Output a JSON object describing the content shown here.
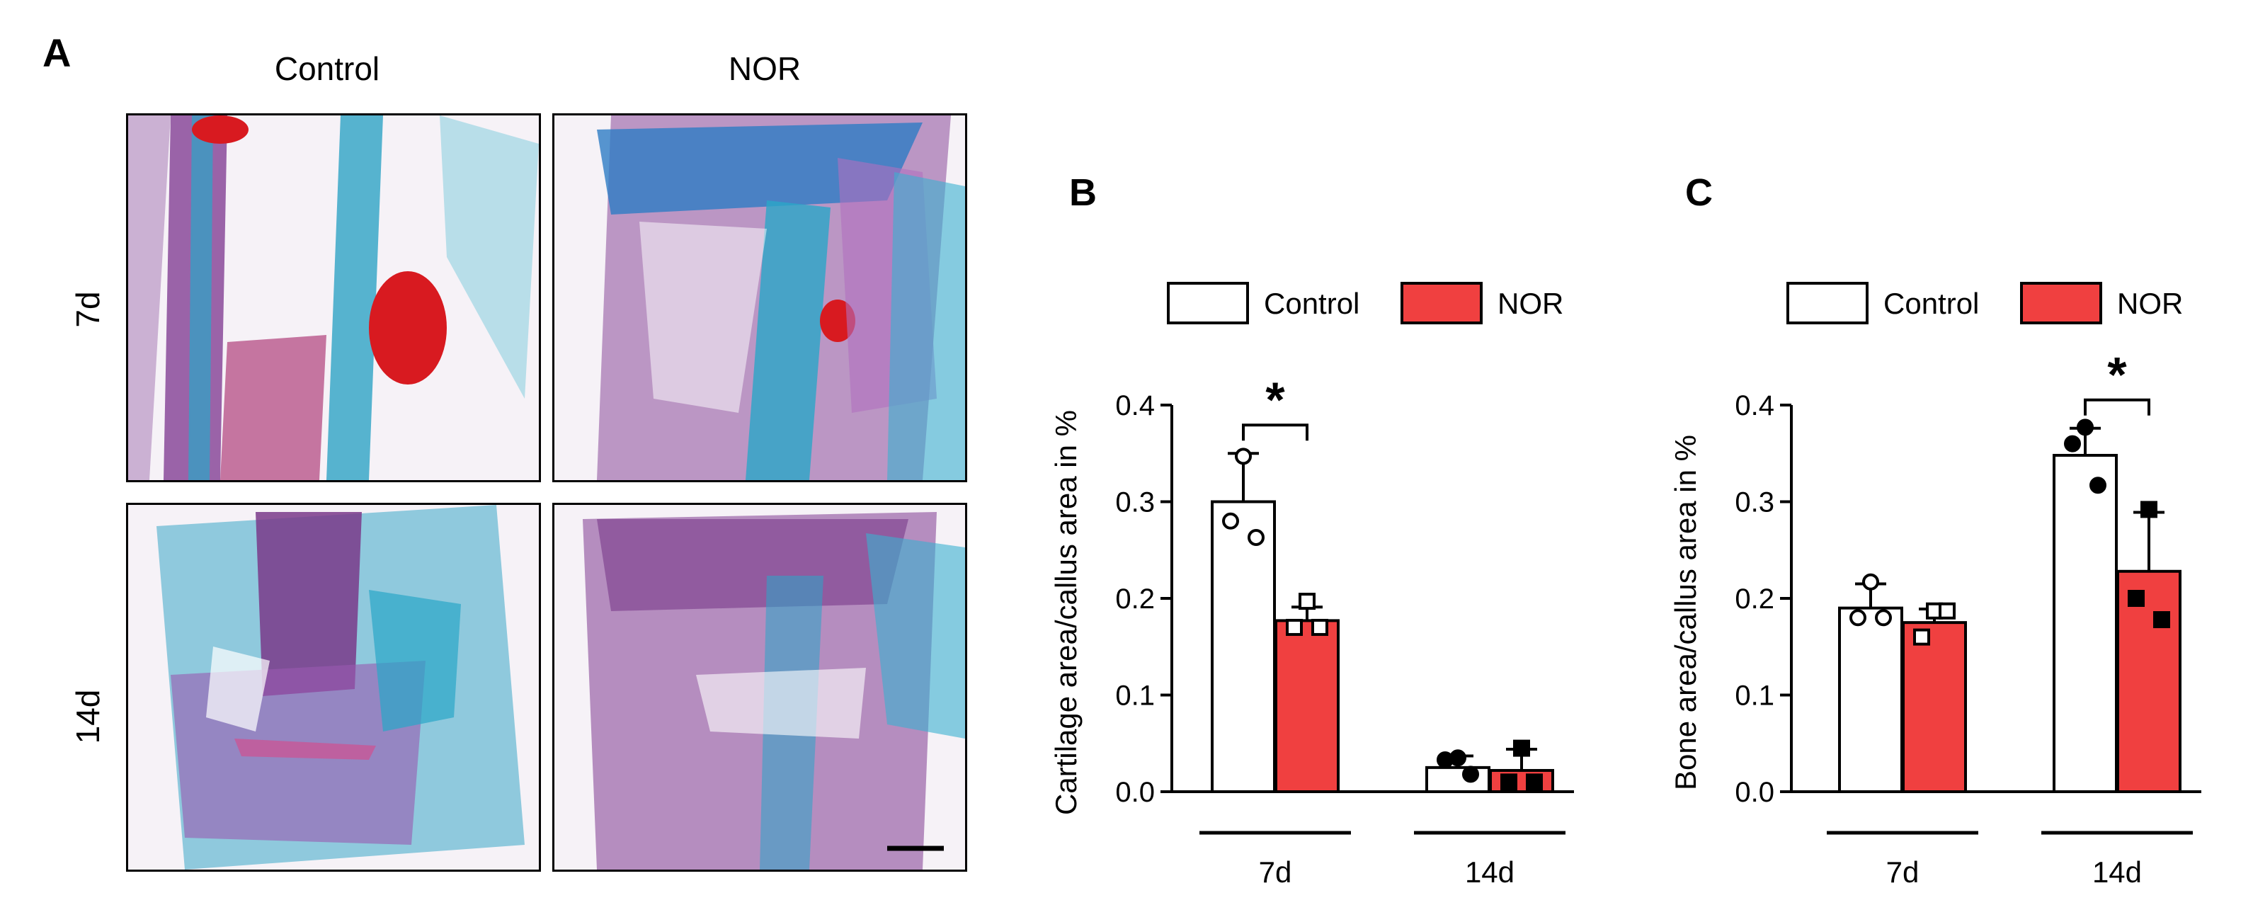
{
  "panel_a": {
    "letter": "A",
    "columns": [
      "Control",
      "NOR"
    ],
    "rows": [
      "7d",
      "14d"
    ],
    "images": [
      {
        "name": "micrograph-control-7d",
        "description": "histology"
      },
      {
        "name": "micrograph-nor-7d",
        "description": "histology"
      },
      {
        "name": "micrograph-control-14d",
        "description": "histology"
      },
      {
        "name": "micrograph-nor-14d",
        "description": "histology"
      }
    ]
  },
  "colors": {
    "control_fill": "#ffffff",
    "nor_fill": "#f04040",
    "axis": "#000000"
  },
  "chart_data": [
    {
      "panel": "B",
      "type": "bar",
      "ylabel": "Cartilage area/callus area in %",
      "ylim": [
        0,
        0.4
      ],
      "yticks": [
        "0.0",
        "0.1",
        "0.2",
        "0.3",
        "0.4"
      ],
      "legend": [
        "Control",
        "NOR"
      ],
      "legend_position": "top",
      "categories": [
        "7d",
        "14d"
      ],
      "series": [
        {
          "name": "Control",
          "values": [
            0.3,
            0.025
          ],
          "sd": [
            0.05,
            0.012
          ],
          "points": [
            [
              0.347,
              0.28,
              0.263
            ],
            [
              0.035,
              0.033,
              0.018
            ]
          ]
        },
        {
          "name": "NOR",
          "values": [
            0.177,
            0.022
          ],
          "sd": [
            0.014,
            0.022
          ],
          "points": [
            [
              0.197,
              0.17,
              0.17
            ],
            [
              0.045,
              0.01,
              0.01
            ]
          ]
        }
      ],
      "significance": [
        {
          "group": "7d",
          "label": "*"
        }
      ]
    },
    {
      "panel": "C",
      "type": "bar",
      "ylabel": "Bone area/callus area in %",
      "ylim": [
        0,
        0.4
      ],
      "yticks": [
        "0.0",
        "0.1",
        "0.2",
        "0.3",
        "0.4"
      ],
      "legend": [
        "Control",
        "NOR"
      ],
      "legend_position": "top",
      "categories": [
        "7d",
        "14d"
      ],
      "series": [
        {
          "name": "Control",
          "values": [
            0.19,
            0.348
          ],
          "sd": [
            0.025,
            0.028
          ],
          "points": [
            [
              0.217,
              0.18,
              0.18
            ],
            [
              0.377,
              0.36,
              0.317
            ]
          ]
        },
        {
          "name": "NOR",
          "values": [
            0.175,
            0.228
          ],
          "sd": [
            0.014,
            0.061
          ],
          "points": [
            [
              0.187,
              0.16,
              0.187
            ],
            [
              0.292,
              0.2,
              0.178
            ]
          ]
        }
      ],
      "significance": [
        {
          "group": "14d",
          "label": "*"
        }
      ]
    }
  ]
}
